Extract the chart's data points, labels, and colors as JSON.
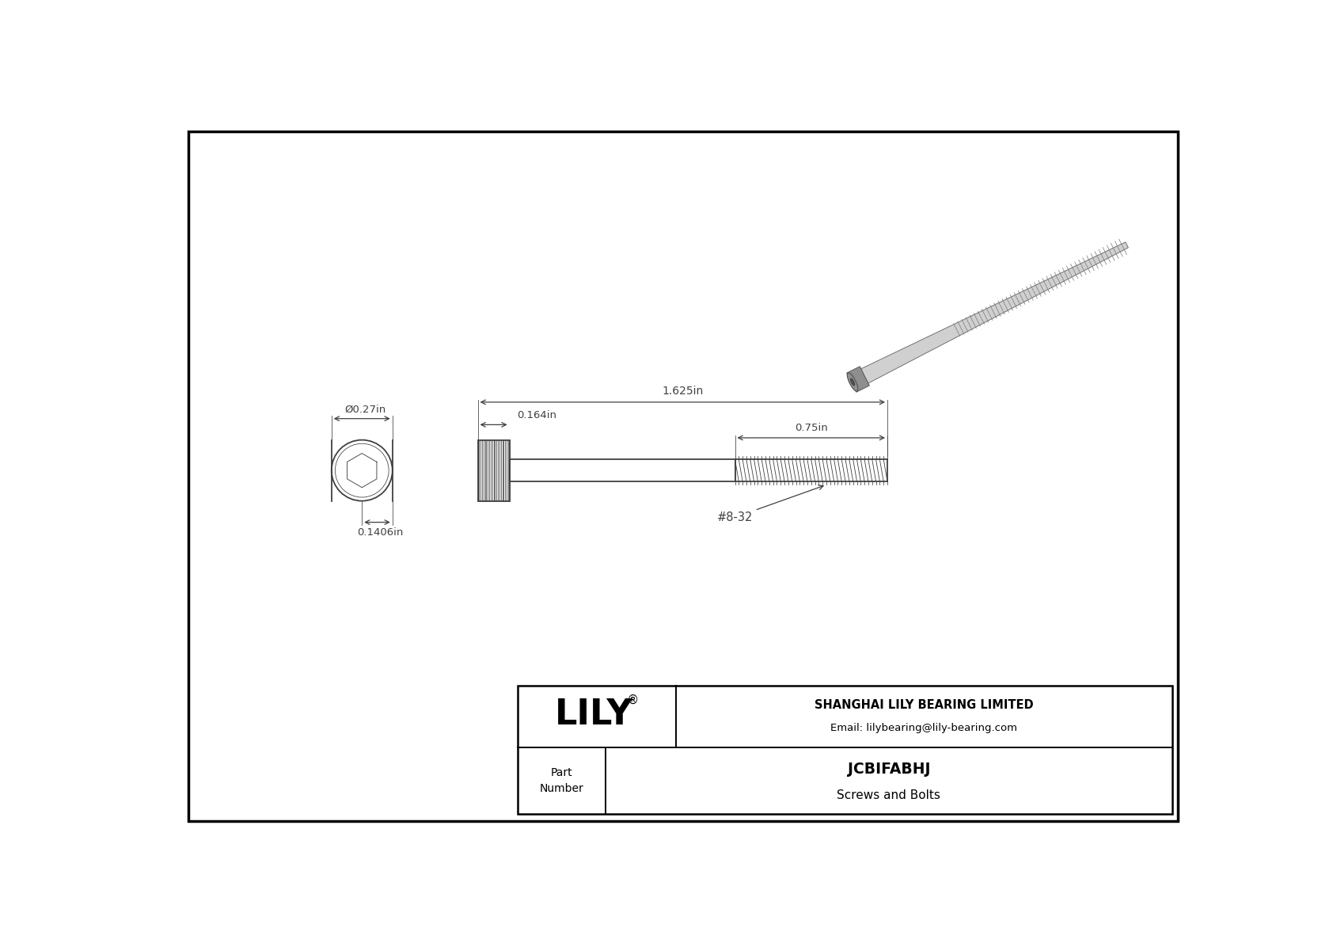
{
  "bg_color": "#ffffff",
  "line_color": "#404040",
  "title_text": "JCBIFABHJ",
  "subtitle_text": "Screws and Bolts",
  "company_name": "SHANGHAI LILY BEARING LIMITED",
  "company_email": "Email: lilybearing@lily-bearing.com",
  "lily_text": "LILY",
  "part_label": "Part\nNumber",
  "dim_head_diameter": "Ø0.27in",
  "dim_head_height": "0.1406in",
  "dim_body_head": "0.164in",
  "dim_total_length": "1.625in",
  "dim_thread_length": "0.75in",
  "dim_thread_label": "#8-32"
}
